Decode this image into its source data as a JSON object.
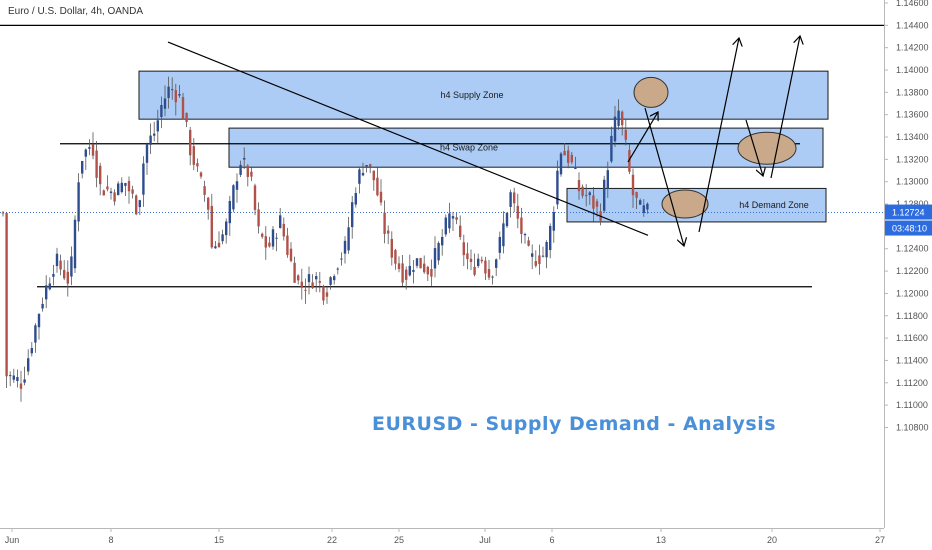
{
  "header": {
    "symbol_title": "Euro / U.S. Dollar, 4h, OANDA"
  },
  "analysis_title": "EURUSD - Supply Demand - Analysis",
  "colors": {
    "up_candle": "#2e4d8f",
    "down_candle": "#b0524a",
    "zone_fill": "#9ec3f5",
    "zone_border": "#1a1a1a",
    "target_ellipse": "#c9a98a",
    "badge": "#2d6cdf",
    "title_color": "#4a90d9"
  },
  "price_badge": {
    "price": "1.12724",
    "countdown": "03:48:10"
  },
  "chart_data": {
    "type": "candlestick",
    "title": "Euro / U.S. Dollar, 4h, OANDA",
    "ylim": [
      1.1071,
      1.1467
    ],
    "y_ticks": [
      "1.14600",
      "1.14400",
      "1.14200",
      "1.14000",
      "1.13800",
      "1.13600",
      "1.13400",
      "1.13200",
      "1.13000",
      "1.12800",
      "1.12600",
      "1.12400",
      "1.12200",
      "1.12000",
      "1.11800",
      "1.11600",
      "1.11400",
      "1.11200",
      "1.11000",
      "1.10800"
    ],
    "x_ticks": [
      "Jun",
      "8",
      "15",
      "22",
      "25",
      "Jul",
      "6",
      "13",
      "20",
      "27"
    ],
    "current_price": 1.12724,
    "zones": [
      {
        "label": "h4 Supply Zone",
        "top": 1.1399,
        "bottom": 1.1356
      },
      {
        "label": "h4 Swap Zone",
        "top": 1.1348,
        "bottom": 1.1313
      },
      {
        "label": "h4 Demand Zone",
        "top": 1.1294,
        "bottom": 1.1264
      }
    ],
    "horizontal_levels": [
      1.144,
      1.1334,
      1.1206
    ],
    "trendline": {
      "from": [
        "8",
        1.1425
      ],
      "to": [
        "13",
        1.1252
      ]
    },
    "projection": [
      "price down to demand zone",
      "rally to 1.1440",
      "pullback to swap zone",
      "rally to 1.1440"
    ]
  }
}
